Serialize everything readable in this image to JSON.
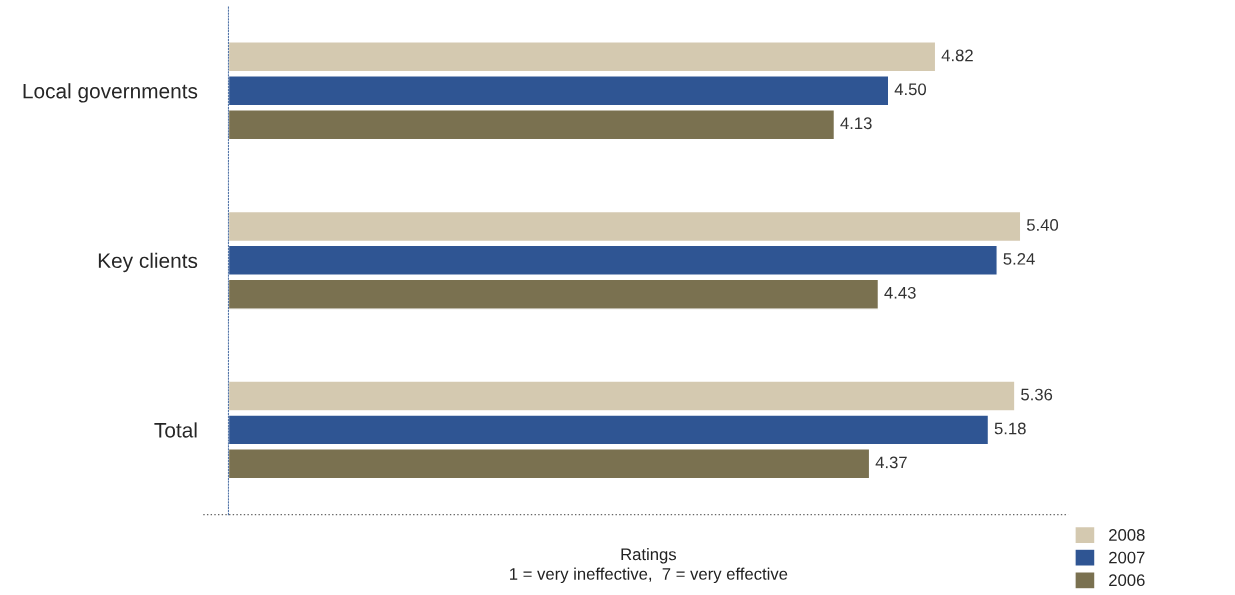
{
  "chart_data": {
    "type": "bar",
    "orientation": "horizontal",
    "categories": [
      "Local governments",
      "Key clients",
      "Total"
    ],
    "series": [
      {
        "name": "2008",
        "color": "#d4c9b0",
        "values": [
          4.82,
          5.4,
          5.36
        ],
        "value_labels": [
          "4.82",
          "5.40",
          "5.36"
        ]
      },
      {
        "name": "2007",
        "color": "#2f5593",
        "values": [
          4.5,
          5.24,
          5.18
        ],
        "value_labels": [
          "4.50",
          "5.24",
          "5.18"
        ]
      },
      {
        "name": "2006",
        "color": "#7a7150",
        "values": [
          4.13,
          4.43,
          4.37
        ],
        "value_labels": [
          "4.13",
          "4.43",
          "4.37"
        ]
      }
    ],
    "xlabel": "Ratings",
    "annotations": [
      "1 = very ineffective,  7 = very effective"
    ],
    "legend": "bottom right",
    "grid": false,
    "tick_labels": "y"
  }
}
